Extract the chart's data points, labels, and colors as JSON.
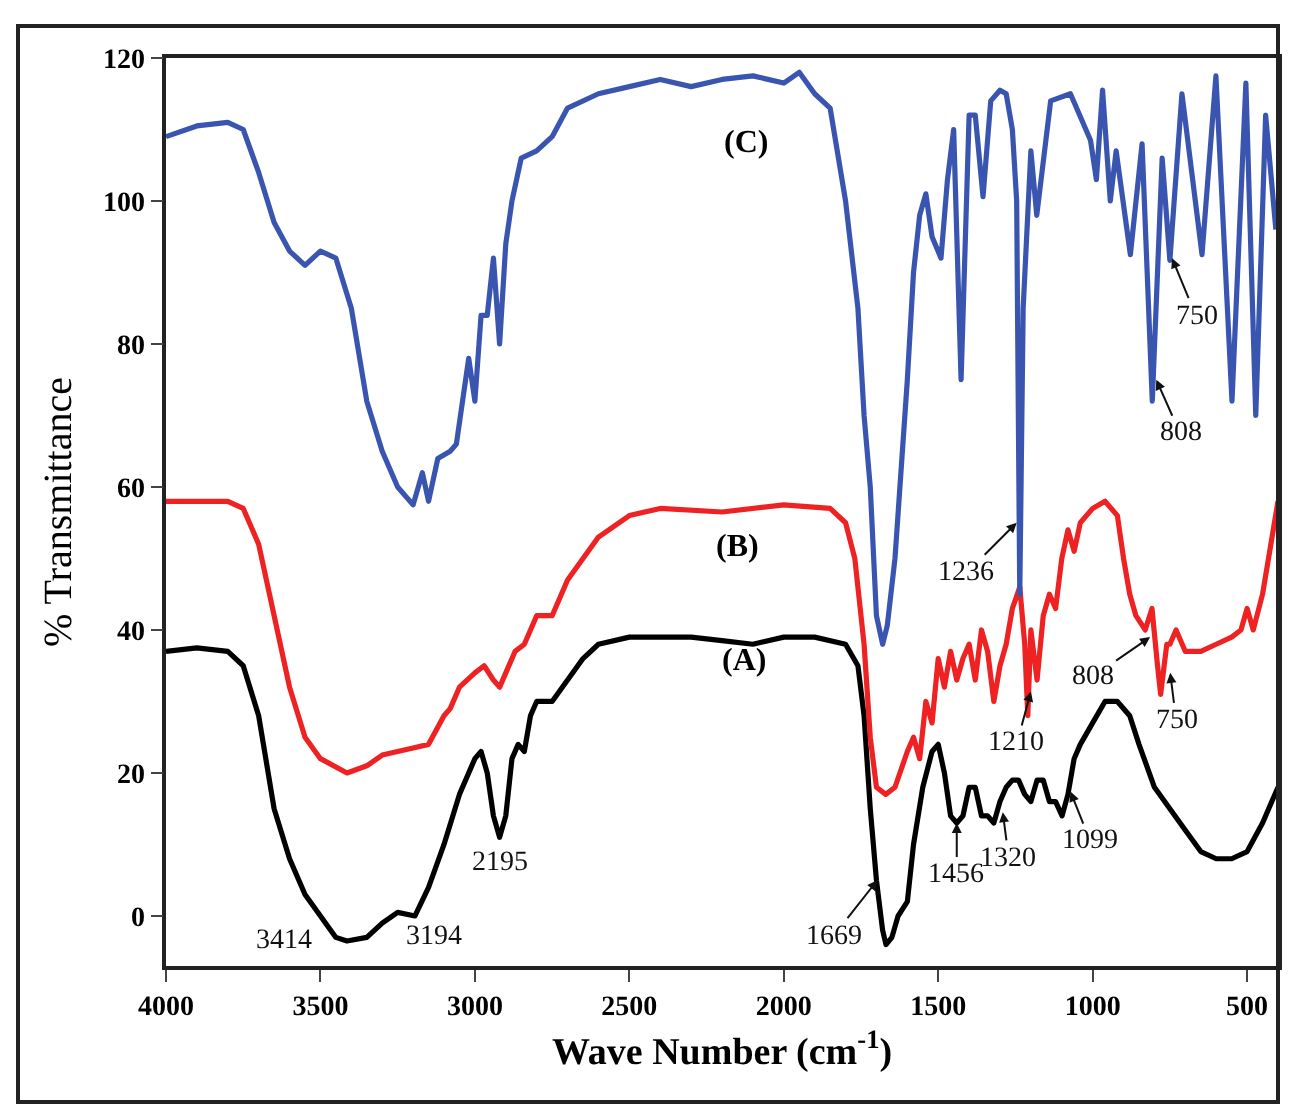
{
  "chart_data": {
    "type": "line",
    "xlabel": "Wave Number (cm$^{-1}$)",
    "ylabel": "% Transmittance",
    "xlim": [
      4000,
      400
    ],
    "xticks": [
      4000,
      3500,
      3000,
      2500,
      2000,
      1500,
      1000,
      500
    ],
    "ylim": [
      -7,
      120
    ],
    "yticks": [
      0,
      20,
      40,
      60,
      80,
      100,
      120
    ],
    "marker": "none",
    "line_style": "solid",
    "series": [
      {
        "color": "#000000",
        "x": [
          4000,
          3900,
          3800,
          3750,
          3700,
          3650,
          3600,
          3550,
          3500,
          3450,
          3414,
          3350,
          3300,
          3250,
          3194,
          3150,
          3100,
          3050,
          3000,
          2980,
          2960,
          2940,
          2920,
          2900,
          2880,
          2860,
          2840,
          2820,
          2800,
          2750,
          2700,
          2650,
          2600,
          2500,
          2300,
          2200,
          2100,
          2000,
          1900,
          1800,
          1760,
          1740,
          1720,
          1700,
          1680,
          1669,
          1650,
          1630,
          1600,
          1580,
          1550,
          1520,
          1500,
          1480,
          1460,
          1440,
          1420,
          1400,
          1380,
          1360,
          1340,
          1320,
          1300,
          1280,
          1260,
          1240,
          1220,
          1200,
          1180,
          1160,
          1140,
          1120,
          1099,
          1080,
          1060,
          1040,
          1000,
          960,
          920,
          880,
          850,
          800,
          750,
          700,
          650,
          600,
          550,
          500,
          450,
          400
        ],
        "values": [
          37,
          37.5,
          37,
          35,
          28,
          15,
          8,
          3,
          0,
          -3,
          -3.5,
          -3,
          -1,
          0.5,
          0,
          4,
          10,
          17,
          22,
          23,
          20,
          14,
          11,
          14,
          22,
          24,
          23,
          28,
          30,
          30,
          33,
          36,
          38,
          39,
          39,
          38.5,
          38,
          39,
          39,
          38,
          35,
          28,
          15,
          5,
          -2,
          -4,
          -3,
          0,
          2,
          10,
          18,
          23,
          24,
          20,
          14,
          13,
          14,
          18,
          18,
          14,
          14,
          13,
          16,
          18,
          19,
          19,
          17,
          16,
          19,
          19,
          16,
          16,
          14,
          17,
          22,
          24,
          27,
          30,
          30,
          28,
          24,
          18,
          15,
          12,
          9,
          8,
          8,
          9,
          13,
          18
        ]
      },
      {
        "color": "#ee2222",
        "x": [
          4000,
          3800,
          3750,
          3700,
          3650,
          3600,
          3550,
          3500,
          3414,
          3350,
          3300,
          3200,
          3150,
          3100,
          3080,
          3050,
          3000,
          2970,
          2940,
          2920,
          2900,
          2870,
          2840,
          2800,
          2750,
          2700,
          2600,
          2500,
          2400,
          2200,
          2000,
          1850,
          1800,
          1770,
          1740,
          1720,
          1700,
          1670,
          1640,
          1600,
          1580,
          1560,
          1540,
          1520,
          1500,
          1480,
          1460,
          1440,
          1420,
          1400,
          1380,
          1360,
          1340,
          1320,
          1300,
          1280,
          1260,
          1236,
          1220,
          1210,
          1200,
          1180,
          1160,
          1140,
          1120,
          1100,
          1080,
          1060,
          1040,
          1000,
          960,
          920,
          900,
          880,
          860,
          830,
          808,
          790,
          780,
          760,
          750,
          730,
          700,
          650,
          600,
          550,
          520,
          500,
          480,
          450,
          400
        ],
        "values": [
          58,
          58,
          57,
          52,
          42,
          32,
          25,
          22,
          20,
          21,
          22.5,
          23.5,
          24,
          28,
          29,
          32,
          34,
          35,
          33,
          32,
          34,
          37,
          38,
          42,
          42,
          47,
          53,
          56,
          57,
          56.5,
          57.5,
          57,
          55,
          50,
          38,
          25,
          18,
          17,
          18,
          23,
          25,
          22,
          30,
          27,
          36,
          32,
          37,
          33,
          36,
          38,
          33,
          40,
          37,
          30,
          35,
          38,
          43,
          46,
          38,
          28,
          40,
          33,
          42,
          45,
          43,
          50,
          54,
          51,
          55,
          57,
          58,
          56,
          50,
          45,
          42,
          40,
          43,
          35,
          31,
          38,
          38,
          40,
          37,
          37,
          38,
          39,
          40,
          43,
          40,
          45,
          58
        ]
      },
      {
        "color": "#3a55b0",
        "x": [
          4000,
          3900,
          3800,
          3750,
          3700,
          3650,
          3600,
          3550,
          3500,
          3450,
          3400,
          3350,
          3300,
          3250,
          3200,
          3170,
          3150,
          3120,
          3080,
          3060,
          3040,
          3020,
          3000,
          2980,
          2960,
          2940,
          2920,
          2900,
          2880,
          2850,
          2800,
          2750,
          2700,
          2600,
          2500,
          2400,
          2300,
          2200,
          2100,
          2000,
          1950,
          1900,
          1850,
          1800,
          1760,
          1740,
          1720,
          1700,
          1680,
          1665,
          1640,
          1600,
          1580,
          1560,
          1540,
          1520,
          1491,
          1470,
          1450,
          1426,
          1400,
          1380,
          1355,
          1330,
          1300,
          1280,
          1260,
          1246,
          1236,
          1225,
          1200,
          1181,
          1136,
          1072,
          1007,
          988,
          968,
          943,
          924,
          878,
          840,
          807,
          775,
          750,
          711,
          646,
          601,
          549,
          504,
          472,
          440,
          407
        ],
        "values": [
          109,
          110.5,
          111,
          110,
          104,
          97,
          93,
          91,
          93,
          92,
          85,
          72,
          65,
          60,
          57.5,
          62,
          58,
          64,
          65,
          66,
          72,
          78,
          72,
          84,
          84,
          92,
          80,
          94,
          100,
          106,
          107,
          109,
          113,
          115,
          116,
          117,
          116,
          117,
          117.5,
          116.5,
          118,
          115,
          113,
          100,
          85,
          70,
          60,
          42,
          38,
          40.6,
          50,
          75,
          90,
          98,
          101,
          95,
          92,
          103,
          110,
          75,
          112,
          112,
          100.6,
          114,
          115.5,
          115,
          110,
          100,
          45,
          85,
          107,
          98,
          114,
          115,
          108.5,
          103,
          115.5,
          100,
          107,
          92.5,
          108,
          72,
          106,
          91.7,
          115,
          92.5,
          117.5,
          72,
          116.5,
          70,
          112,
          96
        ]
      }
    ],
    "annotations": [
      "(C)",
      "(B)",
      "(A)",
      {
        "text": "3414",
        "x": 3414,
        "y": -3.5
      },
      {
        "text": "3194",
        "x": 3194,
        "y": 0
      },
      {
        "text": "2195",
        "x": 2920,
        "y": 11
      },
      {
        "text": "1669",
        "x": 1697,
        "y": 5
      },
      {
        "text": "1456",
        "x": 1440,
        "y": 13
      },
      {
        "text": "1320",
        "x": 1291,
        "y": 14.5
      },
      {
        "text": "1099",
        "x": 1072,
        "y": 17.4
      },
      {
        "text": "1210",
        "x": 1200,
        "y": 31.4
      },
      {
        "text": "808",
        "x": 814,
        "y": 39
      },
      {
        "text": "750",
        "x": 749,
        "y": 34
      },
      {
        "text": "1236",
        "x": 1246,
        "y": 55
      },
      {
        "text": "750",
        "x": 743,
        "y": 92
      },
      {
        "text": "808",
        "x": 794,
        "y": 75
      }
    ]
  }
}
